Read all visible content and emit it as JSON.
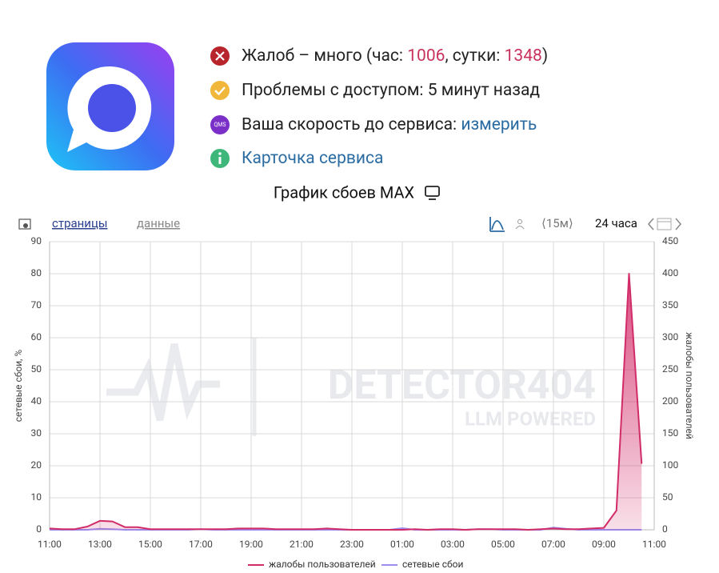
{
  "status": {
    "complaints": {
      "prefix": "Жалоб – много (час:",
      "hour": "1006",
      "mid": ", сутки:",
      "day": "1348",
      "suffix": ")"
    },
    "access": "Проблемы с доступом: 5 минут назад",
    "speed": {
      "text": "Ваша скорость до сервиса:",
      "link": "измерить",
      "icon_text": "QMS"
    },
    "card": "Карточка сервиса"
  },
  "toolbar": {
    "pages": "страницы",
    "data": "данные",
    "step": "⟨15м⟩",
    "range": "24 часа"
  },
  "watermark": {
    "brand": "DETECTOR404",
    "tagline": "LLM POWERED"
  },
  "chart_data": {
    "type": "line",
    "title": "График сбоев MAX",
    "y_label": "сетевые сбои, %",
    "y2_label": "жалобы пользователей",
    "categories": [
      "11:00",
      null,
      null,
      null,
      "13:00",
      null,
      null,
      null,
      "15:00",
      null,
      null,
      null,
      "17:00",
      null,
      null,
      null,
      "19:00",
      null,
      null,
      null,
      "21:00",
      null,
      null,
      null,
      "23:00",
      null,
      null,
      null,
      "01:00",
      null,
      null,
      null,
      "03:00",
      null,
      null,
      null,
      "05:00",
      null,
      null,
      null,
      "07:00",
      null,
      null,
      null,
      "09:00",
      null,
      null,
      null,
      "11:00"
    ],
    "series": [
      {
        "name": "жалобы пользователей",
        "color": "#d22c68",
        "axis": "y2",
        "area": true,
        "values": [
          2,
          1,
          1,
          5,
          14,
          13,
          4,
          4,
          1,
          1,
          1,
          1,
          1,
          1,
          1,
          2,
          2,
          2,
          1,
          1,
          1,
          1,
          2,
          1,
          0,
          0,
          0,
          0,
          0,
          1,
          0,
          1,
          1,
          0,
          1,
          1,
          1,
          1,
          0,
          1,
          2,
          1,
          1,
          2,
          3,
          30,
          400,
          103,
          null
        ]
      },
      {
        "name": "сетевые сбои",
        "color": "#9a8cf0",
        "values": [
          0,
          0,
          0,
          0,
          0.3,
          0.2,
          0,
          0,
          0,
          0,
          0,
          0,
          0.2,
          0,
          0,
          0,
          0,
          0,
          0,
          0,
          0,
          0,
          0,
          0,
          0,
          0,
          0,
          0,
          0.5,
          0,
          0,
          0,
          0,
          0,
          0.2,
          0.2,
          0,
          0,
          0,
          0,
          0.7,
          0.3,
          0,
          0,
          0,
          0,
          0,
          0,
          null
        ]
      }
    ],
    "ylim": [
      0,
      90
    ],
    "yticks": [
      0,
      10,
      20,
      30,
      40,
      50,
      60,
      70,
      80,
      90
    ],
    "y2lim": [
      0,
      450
    ],
    "y2ticks": [
      0,
      50,
      100,
      150,
      200,
      250,
      300,
      350,
      400,
      450
    ],
    "grid": true,
    "legend": "bottom"
  }
}
